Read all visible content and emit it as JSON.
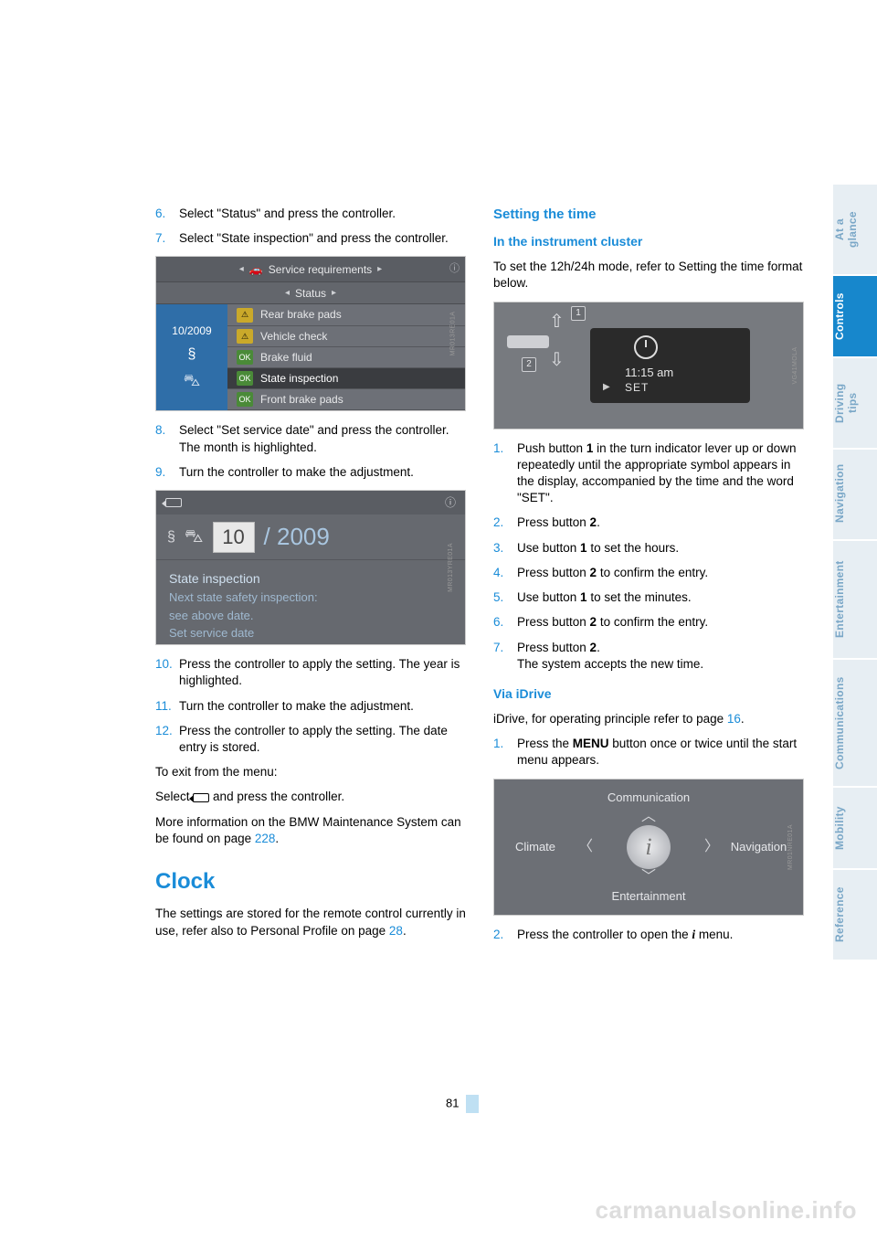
{
  "leftCol": {
    "step6": {
      "num": "6.",
      "text": "Select \"Status\" and press the controller."
    },
    "step7": {
      "num": "7.",
      "text": "Select \"State inspection\" and press the controller."
    },
    "shot1": {
      "topbar": "Service requirements",
      "subbar": "Status",
      "leftDate": "10/2009",
      "rows": [
        {
          "badge": "⚠",
          "cls": "warn",
          "label": "Rear brake pads"
        },
        {
          "badge": "⚠",
          "cls": "warn",
          "label": "Vehicle check"
        },
        {
          "badge": "OK",
          "cls": "ok",
          "label": "Brake fluid"
        },
        {
          "badge": "OK",
          "cls": "ok",
          "label": "State inspection",
          "sel": true
        },
        {
          "badge": "OK",
          "cls": "ok",
          "label": "Front brake pads"
        }
      ],
      "sidecode": "MR013RE01A"
    },
    "step8": {
      "num": "8.",
      "text": "Select \"Set service date\" and press the controller. The month is highlighted."
    },
    "step9": {
      "num": "9.",
      "text": "Turn the controller to make the adjustment."
    },
    "shot2": {
      "month": "10",
      "year": "/ 2009",
      "l1": "State inspection",
      "l2": "Next state safety inspection:",
      "l3": "see above date.",
      "l4": "Set service date",
      "sidecode": "MR013YRE01A"
    },
    "step10": {
      "num": "10.",
      "text": "Press the controller to apply the setting. The year is highlighted."
    },
    "step11": {
      "num": "11.",
      "text": "Turn the controller to make the adjustment."
    },
    "step12": {
      "num": "12.",
      "text": "Press the controller to apply the setting. The date entry is stored."
    },
    "exit1": "To exit from the menu:",
    "exit2a": "Select ",
    "exit2b": " and press the controller.",
    "moreinfo_a": "More information on the BMW Maintenance System can be found on page ",
    "moreinfo_link": "228",
    "moreinfo_b": ".",
    "clockHeading": "Clock",
    "clockPara_a": "The settings are stored for the remote control currently in use, refer also to Personal Profile on page ",
    "clockPara_link": "28",
    "clockPara_b": "."
  },
  "rightCol": {
    "h2": "Setting the time",
    "h3a": "In the instrument cluster",
    "p1": "To set the 12h/24h mode, refer to Setting the time format below.",
    "shot3": {
      "time": "11:15 am",
      "set": "SET",
      "lab1": "1",
      "lab2": "2",
      "sidecode": "VG41MOLA"
    },
    "steps": [
      {
        "num": "1.",
        "text": "Push button 1 in the turn indicator lever up or down repeatedly until the appropriate symbol appears in the display, accompanied by the time and the word \"SET\"."
      },
      {
        "num": "2.",
        "text": "Press button 2."
      },
      {
        "num": "3.",
        "text": "Use button 1 to set the hours."
      },
      {
        "num": "4.",
        "text": "Press button 2 to confirm the entry."
      },
      {
        "num": "5.",
        "text": "Use button 1 to set the minutes."
      },
      {
        "num": "6.",
        "text": "Press button 2 to confirm the entry."
      },
      {
        "num": "7.",
        "text": "Press button 2.\nThe system accepts the new time."
      }
    ],
    "h3b": "Via iDrive",
    "idrive_a": "iDrive, for operating principle refer to page ",
    "idrive_link": "16",
    "idrive_b": ".",
    "bstep1": {
      "num": "1.",
      "text_a": "Press the ",
      "bold": "MENU",
      "text_b": " button once or twice until the start menu appears."
    },
    "shot4": {
      "comm": "Communication",
      "clim": "Climate",
      "navi": "Navigation",
      "ent": "Entertainment",
      "sidecode": "MR01NRE01A"
    },
    "bstep2": {
      "num": "2.",
      "text_a": "Press the controller to open the ",
      "text_b": " menu."
    }
  },
  "tabs": [
    {
      "label": "At a glance",
      "h": "h100"
    },
    {
      "label": "Controls",
      "h": "h90",
      "active": true
    },
    {
      "label": "Driving tips",
      "h": "h100"
    },
    {
      "label": "Navigation",
      "h": "h100"
    },
    {
      "label": "Entertainment",
      "h": "h130"
    },
    {
      "label": "Communications",
      "h": "h140"
    },
    {
      "label": "Mobility",
      "h": "h90"
    },
    {
      "label": "Reference",
      "h": "h100"
    }
  ],
  "pageNumber": "81",
  "watermark": "carmanualsonline.info"
}
